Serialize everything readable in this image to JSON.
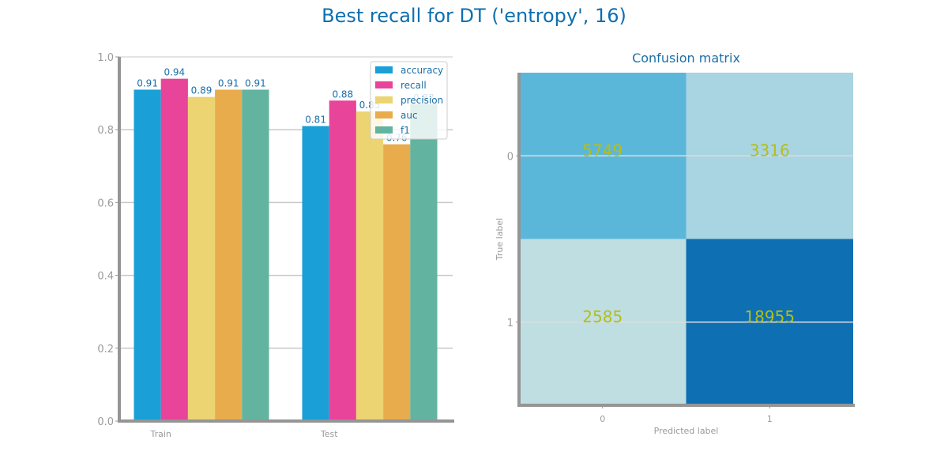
{
  "figure": {
    "title": "Best recall for DT ('entropy', 16)",
    "title_color": "#0d6fb0"
  },
  "chart_data": [
    {
      "type": "bar",
      "title": "",
      "xlabel": "",
      "ylabel": "",
      "ylim": [
        0,
        1.0
      ],
      "yticks": [
        "0.0",
        "0.2",
        "0.4",
        "0.6",
        "0.8",
        "1.0"
      ],
      "grid": true,
      "legend_position": "top-right",
      "categories": [
        "Train",
        "Test"
      ],
      "series": [
        {
          "name": "accuracy",
          "color": "#1a9fd6",
          "values": [
            0.91,
            0.81
          ],
          "labels": [
            "0.91",
            "0.81"
          ]
        },
        {
          "name": "recall",
          "color": "#e8449a",
          "values": [
            0.94,
            0.88
          ],
          "labels": [
            "0.94",
            "0.88"
          ]
        },
        {
          "name": "precision",
          "color": "#ecd473",
          "values": [
            0.89,
            0.85
          ],
          "labels": [
            "0.89",
            "0.85"
          ]
        },
        {
          "name": "auc",
          "color": "#e8ac4c",
          "values": [
            0.91,
            0.76
          ],
          "labels": [
            "0.91",
            "0.76"
          ]
        },
        {
          "name": "f1",
          "color": "#62b39f",
          "values": [
            0.91,
            0.87
          ],
          "labels": [
            "0.91",
            "0.87"
          ]
        }
      ]
    },
    {
      "type": "heatmap",
      "title": "Confusion matrix",
      "xlabel": "Predicted label",
      "ylabel": "True label",
      "x_categories": [
        "0",
        "1"
      ],
      "y_categories": [
        "0",
        "1"
      ],
      "values": [
        [
          5749,
          3316
        ],
        [
          2585,
          18955
        ]
      ],
      "cell_colors": [
        [
          "#5bb7da",
          "#a9d4e1"
        ],
        [
          "#bedee2",
          "#0e6fb2"
        ]
      ],
      "annotation_color": "#b5be17"
    }
  ]
}
